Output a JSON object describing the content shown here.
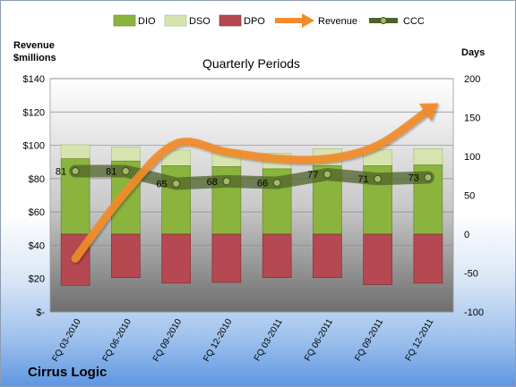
{
  "company": "Cirrus Logic",
  "chart_data": {
    "type": "bar",
    "title": "Quarterly Periods",
    "left_axis_label": [
      "Revenue",
      "$millions"
    ],
    "right_axis_label": "Days",
    "categories": [
      "FQ 03-2010",
      "FQ 06-2010",
      "FQ 09-2010",
      "FQ 12-2010",
      "FQ 03-2011",
      "FQ 06-2011",
      "FQ 09-2011",
      "FQ 12-2011"
    ],
    "left_ticks": [
      "$140",
      "$120",
      "$100",
      "$80",
      "$60",
      "$40",
      "$20",
      "$-"
    ],
    "right_ticks": [
      "200",
      "150",
      "100",
      "50",
      "0",
      "-50",
      "-100"
    ],
    "left_ylim": [
      0,
      140
    ],
    "right_ylim": [
      -100,
      200
    ],
    "legend_position": "top",
    "series": [
      {
        "name": "DIO",
        "axis": "right",
        "kind": "stacked-bar",
        "color": "#8ab43e",
        "values": [
          97,
          94,
          88,
          87,
          84,
          88,
          88,
          89
        ]
      },
      {
        "name": "DSO",
        "axis": "right",
        "kind": "stacked-bar",
        "color": "#d7e4b0",
        "values": [
          18,
          18,
          20,
          21,
          20,
          22,
          21,
          21
        ]
      },
      {
        "name": "DPO",
        "axis": "right",
        "kind": "bar-negative",
        "color": "#b54850",
        "values": [
          -66,
          -56,
          -63,
          -62,
          -56,
          -56,
          -65,
          -63
        ]
      },
      {
        "name": "Revenue",
        "axis": "left",
        "kind": "line-arrow",
        "color": "#f28c2a",
        "values": [
          32,
          72,
          101,
          96,
          92,
          92,
          100,
          121
        ]
      },
      {
        "name": "CCC",
        "axis": "right",
        "kind": "line-marker",
        "color": "#4f6228",
        "values": [
          81,
          81,
          65,
          68,
          66,
          77,
          71,
          73
        ]
      }
    ]
  }
}
